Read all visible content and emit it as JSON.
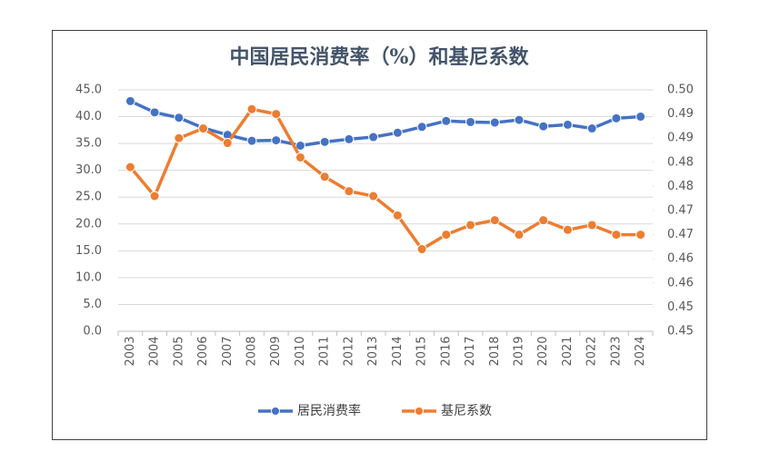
{
  "chart_data": {
    "type": "line",
    "title": "中国居民消费率（%）和基尼系数",
    "categories": [
      "2003",
      "2004",
      "2005",
      "2006",
      "2007",
      "2008",
      "2009",
      "2010",
      "2011",
      "2012",
      "2013",
      "2014",
      "2015",
      "2016",
      "2017",
      "2018",
      "2019",
      "2020",
      "2021",
      "2022",
      "2023",
      "2024"
    ],
    "series": [
      {
        "name": "居民消费率",
        "color": "#4472c4",
        "values": [
          42.9,
          40.8,
          39.8,
          37.9,
          36.6,
          35.5,
          35.6,
          34.6,
          35.3,
          35.8,
          36.2,
          37.0,
          38.1,
          39.2,
          39.0,
          38.9,
          39.4,
          38.2,
          38.5,
          37.8,
          39.7,
          40.0
        ]
      },
      {
        "name": "基尼系数",
        "color": "#ed7d31",
        "axis": "y2",
        "values": [
          0.479,
          0.473,
          0.485,
          0.487,
          0.484,
          0.491,
          0.49,
          0.481,
          0.477,
          0.474,
          0.473,
          0.469,
          0.462,
          0.465,
          0.467,
          0.468,
          0.465,
          0.468,
          0.466,
          0.467,
          0.465,
          0.465
        ]
      }
    ],
    "ylim": [
      0,
      45
    ],
    "yticks": [
      {
        "value": 0,
        "label": "0.0"
      },
      {
        "value": 5,
        "label": "5.0"
      },
      {
        "value": 10,
        "label": "10.0"
      },
      {
        "value": 15,
        "label": "15.0"
      },
      {
        "value": 20,
        "label": "20.0"
      },
      {
        "value": 25,
        "label": "25.0"
      },
      {
        "value": 30,
        "label": "30.0"
      },
      {
        "value": 35,
        "label": "35.0"
      },
      {
        "value": 40,
        "label": "40.0"
      },
      {
        "value": 45,
        "label": "45.0"
      }
    ],
    "y2lim": [
      0.445,
      0.495
    ],
    "y2ticks": [
      {
        "value": 0.445,
        "label": "0.45"
      },
      {
        "value": 0.45,
        "label": "0.45"
      },
      {
        "value": 0.455,
        "label": "0.46"
      },
      {
        "value": 0.46,
        "label": "0.46"
      },
      {
        "value": 0.465,
        "label": "0.47"
      },
      {
        "value": 0.47,
        "label": "0.47"
      },
      {
        "value": 0.475,
        "label": "0.48"
      },
      {
        "value": 0.48,
        "label": "0.48"
      },
      {
        "value": 0.485,
        "label": "0.49"
      },
      {
        "value": 0.49,
        "label": "0.49"
      },
      {
        "value": 0.495,
        "label": "0.50"
      }
    ],
    "grid": true,
    "legend": "bottom"
  }
}
